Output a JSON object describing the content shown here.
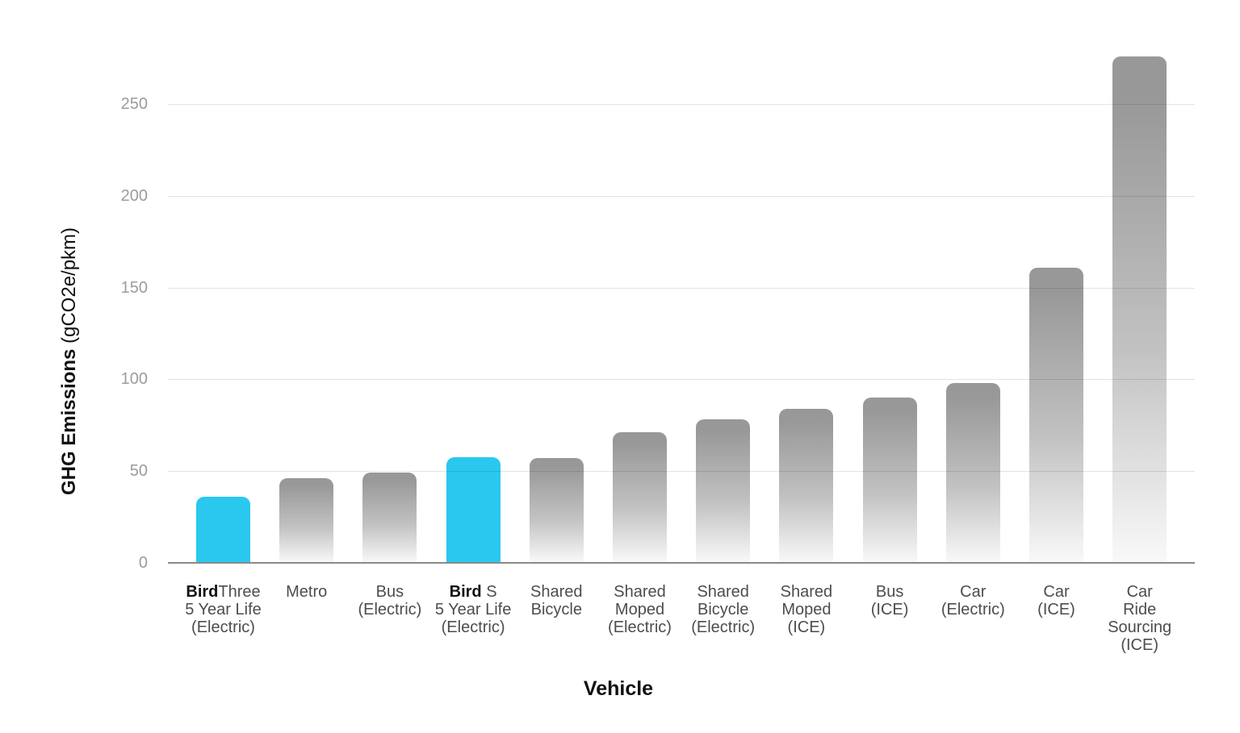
{
  "chart_data": {
    "type": "bar",
    "title": "",
    "xlabel": "Vehicle",
    "ylabel_bold": "GHG Emissions",
    "ylabel_unit": " (gCO2e/pkm)",
    "ylim": [
      0,
      290
    ],
    "yticks": [
      0,
      50,
      100,
      150,
      200,
      250
    ],
    "grid": true,
    "legend_position": "none",
    "categories": [
      "BirdThree 5 Year Life (Electric)",
      "Metro",
      "Bus (Electric)",
      "Bird S 5 Year Life (Electric)",
      "Shared Bicycle",
      "Shared Moped (Electric)",
      "Shared Bicycle (Electric)",
      "Shared Moped (ICE)",
      "Bus (ICE)",
      "Car (Electric)",
      "Car (ICE)",
      "Car Ride Sourcing (ICE)"
    ],
    "values": [
      36,
      46,
      49,
      57.5,
      57,
      71,
      78,
      84,
      90,
      98,
      161,
      276
    ],
    "bars": [
      {
        "label_bold": "Bird",
        "label_after_bold": "Three",
        "label_lines": [
          "5 Year Life",
          "(Electric)"
        ],
        "highlight": true,
        "value": 36
      },
      {
        "label_bold": "",
        "label_after_bold": "Metro",
        "label_lines": [],
        "highlight": false,
        "value": 46
      },
      {
        "label_bold": "",
        "label_after_bold": "Bus",
        "label_lines": [
          "(Electric)"
        ],
        "highlight": false,
        "value": 49
      },
      {
        "label_bold": "Bird",
        "label_after_bold": " S",
        "label_lines": [
          "5 Year Life",
          "(Electric)"
        ],
        "highlight": true,
        "value": 57.5
      },
      {
        "label_bold": "",
        "label_after_bold": "Shared",
        "label_lines": [
          "Bicycle"
        ],
        "highlight": false,
        "value": 57
      },
      {
        "label_bold": "",
        "label_after_bold": "Shared",
        "label_lines": [
          "Moped",
          "(Electric)"
        ],
        "highlight": false,
        "value": 71
      },
      {
        "label_bold": "",
        "label_after_bold": "Shared",
        "label_lines": [
          "Bicycle",
          "(Electric)"
        ],
        "highlight": false,
        "value": 78
      },
      {
        "label_bold": "",
        "label_after_bold": "Shared",
        "label_lines": [
          "Moped",
          "(ICE)"
        ],
        "highlight": false,
        "value": 84
      },
      {
        "label_bold": "",
        "label_after_bold": "Bus",
        "label_lines": [
          "(ICE)"
        ],
        "highlight": false,
        "value": 90
      },
      {
        "label_bold": "",
        "label_after_bold": "Car",
        "label_lines": [
          "(Electric)"
        ],
        "highlight": false,
        "value": 98
      },
      {
        "label_bold": "",
        "label_after_bold": "Car",
        "label_lines": [
          "(ICE)"
        ],
        "highlight": false,
        "value": 161
      },
      {
        "label_bold": "",
        "label_after_bold": "Car",
        "label_lines": [
          "Ride",
          "Sourcing",
          "(ICE)"
        ],
        "highlight": false,
        "value": 276
      }
    ],
    "colors": {
      "highlight_bar": "#2AC8EE",
      "gray_bar_top": "#989898",
      "gray_bar_bottom": "#F9F9F9",
      "gridline": "#E3E3E3",
      "axis_line": "#8A8A8A",
      "tick_text": "#9C9C9C",
      "category_text": "#4D4D4D",
      "title_text": "#111111"
    }
  }
}
